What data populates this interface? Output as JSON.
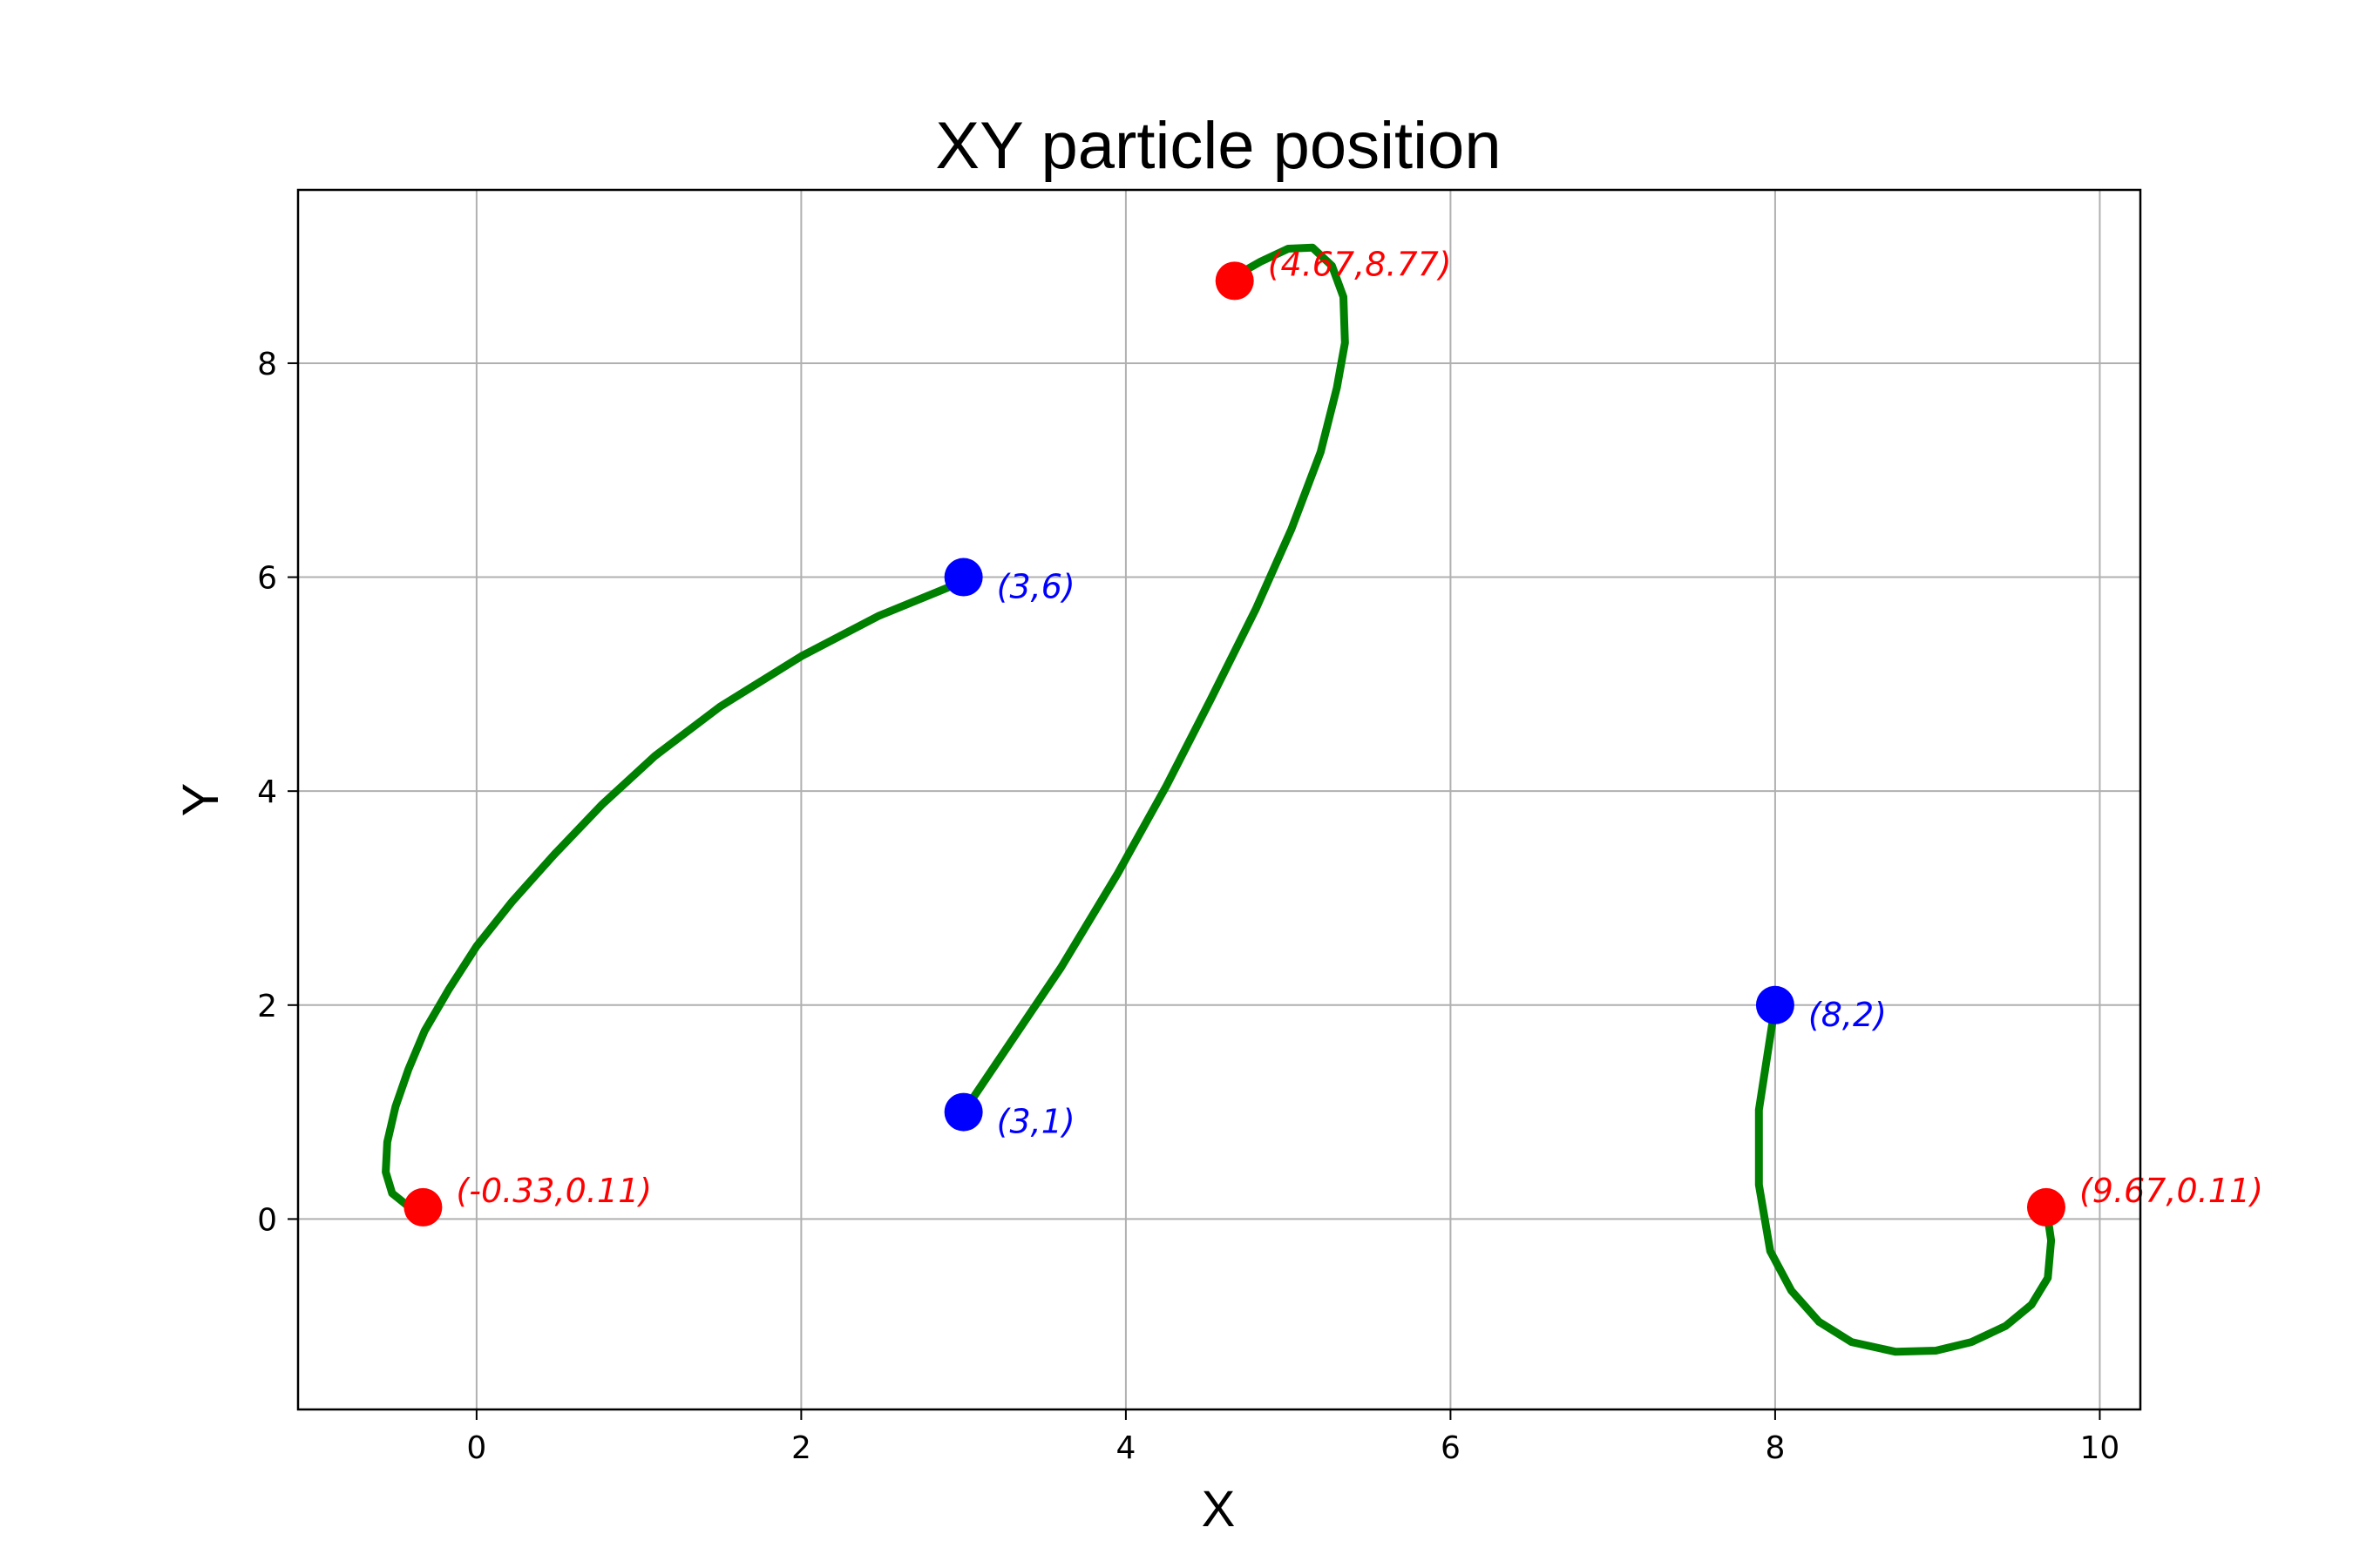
{
  "chart_data": {
    "type": "line",
    "title": "XY particle position",
    "xlabel": "X",
    "ylabel": "Y",
    "xlim": [
      -1.1,
      10.25
    ],
    "ylim": [
      -1.78,
      9.62
    ],
    "grid": true,
    "xticks": [
      0,
      2,
      4,
      6,
      8,
      10
    ],
    "yticks": [
      0,
      2,
      4,
      6,
      8
    ],
    "colors": {
      "path": "#008000",
      "start": "#0000ff",
      "end": "#ff0000",
      "grid": "#b0b0b0"
    },
    "series": [
      {
        "x": [
          3.0,
          2.9,
          2.48,
          2.0,
          1.5,
          1.1,
          0.77,
          0.48,
          0.22,
          0.0,
          -0.17,
          -0.32,
          -0.42,
          -0.5,
          -0.55,
          -0.56,
          -0.52,
          -0.43,
          -0.33
        ],
        "y": [
          6.0,
          5.9,
          5.64,
          5.26,
          4.79,
          4.33,
          3.87,
          3.41,
          2.97,
          2.55,
          2.15,
          1.76,
          1.4,
          1.05,
          0.72,
          0.44,
          0.24,
          0.13,
          0.11
        ]
      },
      {
        "x": [
          3.0,
          3.2,
          3.6,
          3.95,
          4.25,
          4.52,
          4.8,
          5.02,
          5.2,
          5.3,
          5.35,
          5.34,
          5.27,
          5.15,
          5.0,
          4.83,
          4.68,
          4.67
        ],
        "y": [
          1.0,
          1.45,
          2.35,
          3.23,
          4.05,
          4.85,
          5.7,
          6.45,
          7.17,
          7.77,
          8.19,
          8.62,
          8.91,
          9.08,
          9.07,
          8.95,
          8.82,
          8.77
        ]
      },
      {
        "x": [
          8.0,
          7.9,
          7.9,
          7.97,
          8.1,
          8.27,
          8.47,
          8.74,
          8.99,
          9.21,
          9.42,
          9.58,
          9.68,
          9.7,
          9.67
        ],
        "y": [
          2.0,
          1.02,
          0.32,
          -0.3,
          -0.67,
          -0.96,
          -1.15,
          -1.24,
          -1.23,
          -1.15,
          -1.0,
          -0.8,
          -0.55,
          -0.2,
          0.11
        ]
      }
    ],
    "points": [
      {
        "x": 3,
        "y": 6,
        "label": "(3,6)",
        "kind": "start"
      },
      {
        "x": 3,
        "y": 1,
        "label": "(3,1)",
        "kind": "start"
      },
      {
        "x": 8,
        "y": 2,
        "label": "(8,2)",
        "kind": "start"
      },
      {
        "x": -0.33,
        "y": 0.11,
        "label": "(-0.33,0.11)",
        "kind": "end"
      },
      {
        "x": 4.67,
        "y": 8.77,
        "label": "(4.67,8.77)",
        "kind": "end"
      },
      {
        "x": 9.67,
        "y": 0.11,
        "label": "(9.67,0.11)",
        "kind": "end"
      }
    ]
  }
}
